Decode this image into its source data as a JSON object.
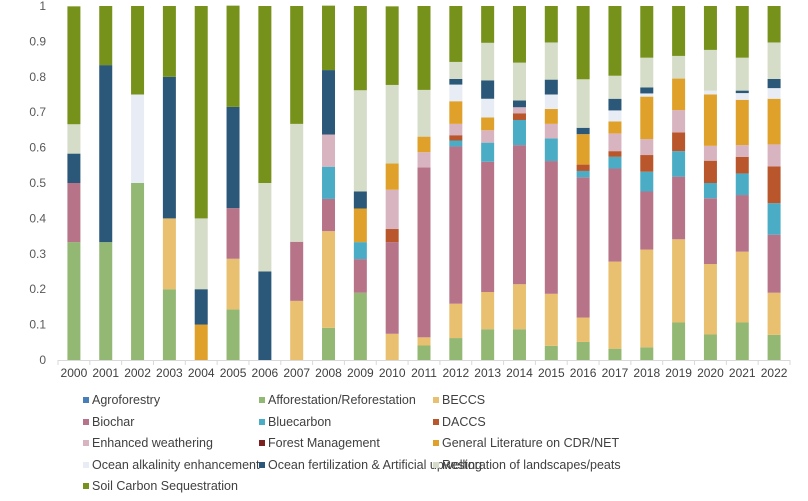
{
  "chart_data": {
    "type": "bar",
    "stacked": true,
    "title": "",
    "xlabel": "",
    "ylabel": "",
    "ylim": [
      0,
      1
    ],
    "yticks": [
      "0",
      "0.1",
      "0.2",
      "0.3",
      "0.4",
      "0.5",
      "0.6",
      "0.7",
      "0.8",
      "0.9",
      "1"
    ],
    "grid": false,
    "legend_position": "bottom",
    "categories": [
      "2000",
      "2001",
      "2002",
      "2003",
      "2004",
      "2005",
      "2006",
      "2007",
      "2008",
      "2009",
      "2010",
      "2011",
      "2012",
      "2013",
      "2014",
      "2015",
      "2016",
      "2017",
      "2018",
      "2019",
      "2020",
      "2021",
      "2022"
    ],
    "series": [
      {
        "name": "Agroforestry",
        "color": "#4a7ebb",
        "values": [
          0,
          0,
          0,
          0,
          0,
          0,
          0,
          0,
          0,
          0,
          0,
          0,
          0,
          0,
          0,
          0,
          0,
          0,
          0,
          0,
          0,
          0,
          0
        ]
      },
      {
        "name": "Afforestation/Reforestation",
        "color": "#93b874",
        "values": [
          0.333,
          0.333,
          0.5,
          0.2,
          0,
          0.143,
          0,
          0,
          0.091,
          0.19,
          0,
          0.041,
          0.062,
          0.087,
          0.087,
          0.04,
          0.051,
          0.032,
          0.036,
          0.106,
          0.072,
          0.106,
          0.071
        ]
      },
      {
        "name": "BECCS",
        "color": "#e9c06f",
        "values": [
          0,
          0,
          0,
          0.2,
          0,
          0.143,
          0,
          0.167,
          0.273,
          0,
          0.074,
          0.023,
          0.097,
          0.105,
          0.127,
          0.147,
          0.069,
          0.246,
          0.276,
          0.235,
          0.199,
          0.2,
          0.119
        ]
      },
      {
        "name": "Biochar",
        "color": "#b77489",
        "values": [
          0.167,
          0,
          0,
          0,
          0,
          0.143,
          0,
          0.167,
          0.091,
          0.095,
          0.259,
          0.48,
          0.444,
          0.368,
          0.393,
          0.375,
          0.396,
          0.263,
          0.164,
          0.177,
          0.186,
          0.16,
          0.164
        ]
      },
      {
        "name": "Bluecarbon",
        "color": "#4bacc6",
        "values": [
          0,
          0,
          0,
          0,
          0,
          0,
          0,
          0,
          0.091,
          0.048,
          0,
          0,
          0.017,
          0.054,
          0.071,
          0.064,
          0.018,
          0.033,
          0.056,
          0.072,
          0.043,
          0.061,
          0.089
        ]
      },
      {
        "name": "DACCS",
        "color": "#b9562b",
        "values": [
          0,
          0,
          0,
          0,
          0,
          0,
          0,
          0,
          0,
          0,
          0.037,
          0,
          0.015,
          0,
          0.019,
          0,
          0.018,
          0.016,
          0.047,
          0.053,
          0.063,
          0.047,
          0.104
        ]
      },
      {
        "name": "Enhanced weathering",
        "color": "#d8b4c0",
        "values": [
          0,
          0,
          0,
          0,
          0,
          0,
          0,
          0,
          0.091,
          0,
          0.111,
          0.043,
          0.032,
          0.035,
          0.017,
          0.041,
          0,
          0.05,
          0.045,
          0.063,
          0.042,
          0.033,
          0.062
        ]
      },
      {
        "name": "Forest Management",
        "color": "#7b2020",
        "values": [
          0,
          0,
          0,
          0,
          0,
          0,
          0,
          0,
          0,
          0,
          0,
          0,
          0,
          0,
          0,
          0,
          0,
          0,
          0,
          0,
          0,
          0,
          0
        ]
      },
      {
        "name": "General Literature on CDR/NET",
        "color": "#e0a12a",
        "values": [
          0,
          0,
          0,
          0,
          0.1,
          0,
          0,
          0,
          0,
          0.095,
          0.074,
          0.044,
          0.064,
          0.036,
          0,
          0.042,
          0.086,
          0.034,
          0.12,
          0.089,
          0.145,
          0.128,
          0.129
        ]
      },
      {
        "name": "Ocean alkalinity enhancement",
        "color": "#e8ecf4",
        "values": [
          0,
          0,
          0.25,
          0,
          0,
          0,
          0,
          0,
          0,
          0,
          0,
          0,
          0.047,
          0.053,
          0,
          0.041,
          0,
          0.031,
          0.009,
          0,
          0.011,
          0.019,
          0.03
        ]
      },
      {
        "name": "Ocean fertilization & Artificial upwelling",
        "color": "#2b5778",
        "values": [
          0.083,
          0.5,
          0,
          0.4,
          0.1,
          0.286,
          0.25,
          0,
          0.182,
          0.048,
          0,
          0,
          0.016,
          0.052,
          0.019,
          0.042,
          0.018,
          0.033,
          0.017,
          0,
          0,
          0.007,
          0.026
        ]
      },
      {
        "name": "Restoration of landscapes/peats",
        "color": "#d5dcc8",
        "values": [
          0.083,
          0,
          0,
          0,
          0.2,
          0,
          0.25,
          0.333,
          0,
          0.286,
          0.222,
          0.132,
          0.048,
          0.106,
          0.107,
          0.105,
          0.137,
          0.065,
          0.084,
          0.064,
          0.115,
          0.093,
          0.103
        ]
      },
      {
        "name": "Soil Carbon Sequestration",
        "color": "#76921a",
        "values": [
          0.333,
          0.167,
          0.25,
          0.2,
          0.6,
          0.286,
          0.5,
          0.333,
          0.182,
          0.238,
          0.222,
          0.237,
          0.158,
          0.104,
          0.16,
          0.103,
          0.207,
          0.197,
          0.146,
          0.141,
          0.124,
          0.146,
          0.103
        ]
      }
    ]
  }
}
